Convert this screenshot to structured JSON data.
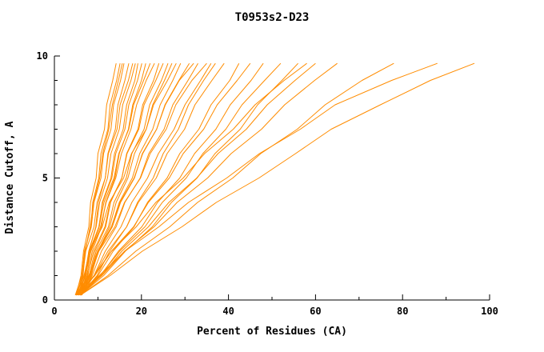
{
  "chart_data": {
    "type": "line",
    "title": "T0953s2-D23",
    "xlabel": "Percent of Residues (CA)",
    "ylabel": "Distance Cutoff, A",
    "xlim": [
      0,
      100
    ],
    "ylim": [
      0,
      10
    ],
    "x_ticks": [
      0,
      20,
      40,
      60,
      80,
      100
    ],
    "y_ticks": [
      0,
      5,
      10
    ],
    "x_minor_ticks": [
      10,
      30,
      50,
      70,
      90
    ],
    "y_minor_ticks": [
      1,
      2,
      3,
      4,
      6,
      7,
      8,
      9
    ],
    "grid": false,
    "legend": "none",
    "line_color": "#ff8c00",
    "axis_color": "#000000",
    "y_levels": [
      0.2,
      1,
      2,
      3,
      4,
      5,
      6,
      7,
      8,
      9,
      9.7
    ],
    "series": [
      {
        "name": "curve-01",
        "x": [
          5.0,
          6.1,
          6.7,
          7.9,
          8.3,
          9.6,
          10.0,
          11.5,
          12.0,
          13.4,
          14.2
        ]
      },
      {
        "name": "curve-02",
        "x": [
          5.6,
          6.6,
          7.0,
          8.4,
          8.8,
          10.2,
          10.7,
          12.3,
          12.8,
          14.3,
          15.1
        ]
      },
      {
        "name": "curve-03",
        "x": [
          4.8,
          6.3,
          6.9,
          8.5,
          9.1,
          10.7,
          11.3,
          13.0,
          13.6,
          15.2,
          16.0
        ]
      },
      {
        "name": "curve-04",
        "x": [
          6.0,
          7.3,
          7.9,
          9.5,
          10.1,
          11.7,
          12.3,
          14.0,
          14.6,
          16.2,
          17.1
        ]
      },
      {
        "name": "curve-05",
        "x": [
          5.1,
          6.5,
          7.2,
          9.1,
          9.8,
          11.7,
          12.4,
          14.4,
          15.1,
          17.0,
          18.0
        ]
      },
      {
        "name": "curve-06",
        "x": [
          6.2,
          7.5,
          8.3,
          10.3,
          11.0,
          13.0,
          13.8,
          15.8,
          16.6,
          18.5,
          19.2
        ]
      },
      {
        "name": "curve-07",
        "x": [
          5.4,
          7.2,
          8.1,
          10.2,
          11.1,
          13.2,
          14.1,
          16.2,
          17.1,
          19.1,
          20.1
        ]
      },
      {
        "name": "curve-08",
        "x": [
          6.0,
          7.7,
          8.7,
          10.8,
          11.8,
          13.9,
          14.9,
          17.0,
          18.0,
          20.0,
          21.0
        ]
      },
      {
        "name": "curve-09",
        "x": [
          4.9,
          6.9,
          8.0,
          10.3,
          11.4,
          13.7,
          14.8,
          17.1,
          18.2,
          20.5,
          22.0
        ]
      },
      {
        "name": "curve-10",
        "x": [
          6.1,
          8.0,
          9.3,
          11.8,
          12.9,
          15.5,
          16.6,
          19.2,
          20.3,
          22.8,
          24.0
        ]
      },
      {
        "name": "curve-11",
        "x": [
          5.5,
          7.6,
          9.0,
          11.6,
          12.8,
          15.5,
          16.7,
          19.4,
          20.6,
          23.3,
          25.0
        ]
      },
      {
        "name": "curve-12",
        "x": [
          6.0,
          8.2,
          9.6,
          12.4,
          13.7,
          16.5,
          17.8,
          20.6,
          21.9,
          24.6,
          26.1
        ]
      },
      {
        "name": "curve-13",
        "x": [
          5.0,
          6.8,
          8.1,
          11.0,
          12.6,
          15.9,
          17.7,
          21.1,
          22.8,
          26.0,
          28.0
        ]
      },
      {
        "name": "curve-14",
        "x": [
          6.0,
          8.3,
          10.2,
          13.1,
          14.9,
          17.9,
          19.6,
          22.6,
          24.3,
          27.2,
          29.0
        ]
      },
      {
        "name": "curve-15",
        "x": [
          5.5,
          8.1,
          10.1,
          13.3,
          15.2,
          18.4,
          20.2,
          23.5,
          25.4,
          28.6,
          31.0
        ]
      },
      {
        "name": "curve-16",
        "x": [
          6.1,
          8.7,
          10.8,
          14.2,
          16.2,
          19.7,
          21.7,
          25.2,
          27.2,
          30.7,
          33.0
        ]
      },
      {
        "name": "curve-17",
        "x": [
          5.0,
          7.9,
          10.2,
          13.9,
          16.1,
          19.8,
          22.0,
          25.7,
          27.9,
          31.6,
          35.0
        ]
      },
      {
        "name": "curve-18",
        "x": [
          6.0,
          9.8,
          12.7,
          16.6,
          19.1,
          22.7,
          25.0,
          28.5,
          30.8,
          34.3,
          37.0
        ]
      },
      {
        "name": "curve-19",
        "x": [
          5.6,
          9.2,
          12.3,
          16.6,
          19.3,
          23.4,
          25.9,
          29.9,
          32.3,
          36.2,
          39.0
        ]
      },
      {
        "name": "curve-20",
        "x": [
          6.0,
          10.0,
          13.5,
          18.3,
          21.4,
          25.9,
          28.8,
          33.2,
          36.0,
          40.3,
          42.4
        ]
      },
      {
        "name": "curve-21",
        "x": [
          5.0,
          9.3,
          13.1,
          18.2,
          21.6,
          26.4,
          29.6,
          34.3,
          37.4,
          42.0,
          45.0
        ]
      },
      {
        "name": "curve-22",
        "x": [
          6.0,
          10.6,
          14.7,
          20.1,
          23.7,
          28.8,
          32.2,
          37.1,
          40.4,
          45.2,
          48.0
        ]
      },
      {
        "name": "curve-23",
        "x": [
          5.5,
          10.5,
          15.0,
          20.8,
          24.8,
          30.3,
          34.1,
          39.4,
          43.1,
          48.3,
          52.0
        ]
      },
      {
        "name": "curve-24",
        "x": [
          6.0,
          11.3,
          16.3,
          22.5,
          26.9,
          32.8,
          36.9,
          42.7,
          46.7,
          52.3,
          56.0
        ]
      },
      {
        "name": "curve-25",
        "x": [
          5.0,
          9.1,
          13.1,
          18.8,
          23.3,
          29.6,
          34.5,
          41.1,
          46.1,
          52.8,
          58.0
        ]
      },
      {
        "name": "curve-26",
        "x": [
          6.0,
          10.8,
          15.5,
          21.6,
          26.3,
          32.7,
          37.6,
          44.1,
          48.9,
          55.3,
          60.0
        ]
      },
      {
        "name": "curve-27",
        "x": [
          5.5,
          10.9,
          16.1,
          22.9,
          28.2,
          35.2,
          40.6,
          47.6,
          52.9,
          59.8,
          65.0
        ]
      },
      {
        "name": "curve-28",
        "x": [
          6.0,
          12.3,
          18.7,
          26.5,
          32.9,
          41.0,
          47.4,
          55.8,
          62.2,
          70.7,
          78.0
        ]
      },
      {
        "name": "curve-29",
        "x": [
          5.0,
          10.3,
          16.2,
          24.0,
          30.8,
          39.6,
          47.1,
          56.5,
          64.5,
          77.5,
          88.0
        ]
      },
      {
        "name": "curve-30",
        "x": [
          6.0,
          12.8,
          20.2,
          29.3,
          37.2,
          47.0,
          55.4,
          63.6,
          74.9,
          86.4,
          96.5
        ]
      },
      {
        "name": "curve-31",
        "x": [
          5.2,
          6.4,
          7.1,
          8.2,
          9.0,
          10.4,
          11.1,
          12.5,
          13.3,
          14.7,
          15.6
        ]
      },
      {
        "name": "curve-32",
        "x": [
          5.8,
          7.0,
          7.9,
          9.6,
          10.4,
          12.2,
          13.0,
          14.9,
          15.7,
          17.6,
          18.6
        ]
      },
      {
        "name": "curve-33",
        "x": [
          5.2,
          7.1,
          8.4,
          10.6,
          11.9,
          14.1,
          15.4,
          17.6,
          18.9,
          21.1,
          23.0
        ]
      },
      {
        "name": "curve-34",
        "x": [
          6.3,
          8.5,
          10.0,
          12.7,
          14.2,
          16.9,
          18.4,
          21.1,
          22.6,
          25.3,
          27.0
        ]
      },
      {
        "name": "curve-35",
        "x": [
          5.3,
          7.9,
          9.9,
          13.1,
          15.1,
          18.3,
          20.3,
          23.5,
          25.5,
          28.7,
          32.0
        ]
      },
      {
        "name": "curve-36",
        "x": [
          6.2,
          9.1,
          11.7,
          15.3,
          17.8,
          21.4,
          23.9,
          27.5,
          30.0,
          33.6,
          36.0
        ]
      }
    ]
  }
}
